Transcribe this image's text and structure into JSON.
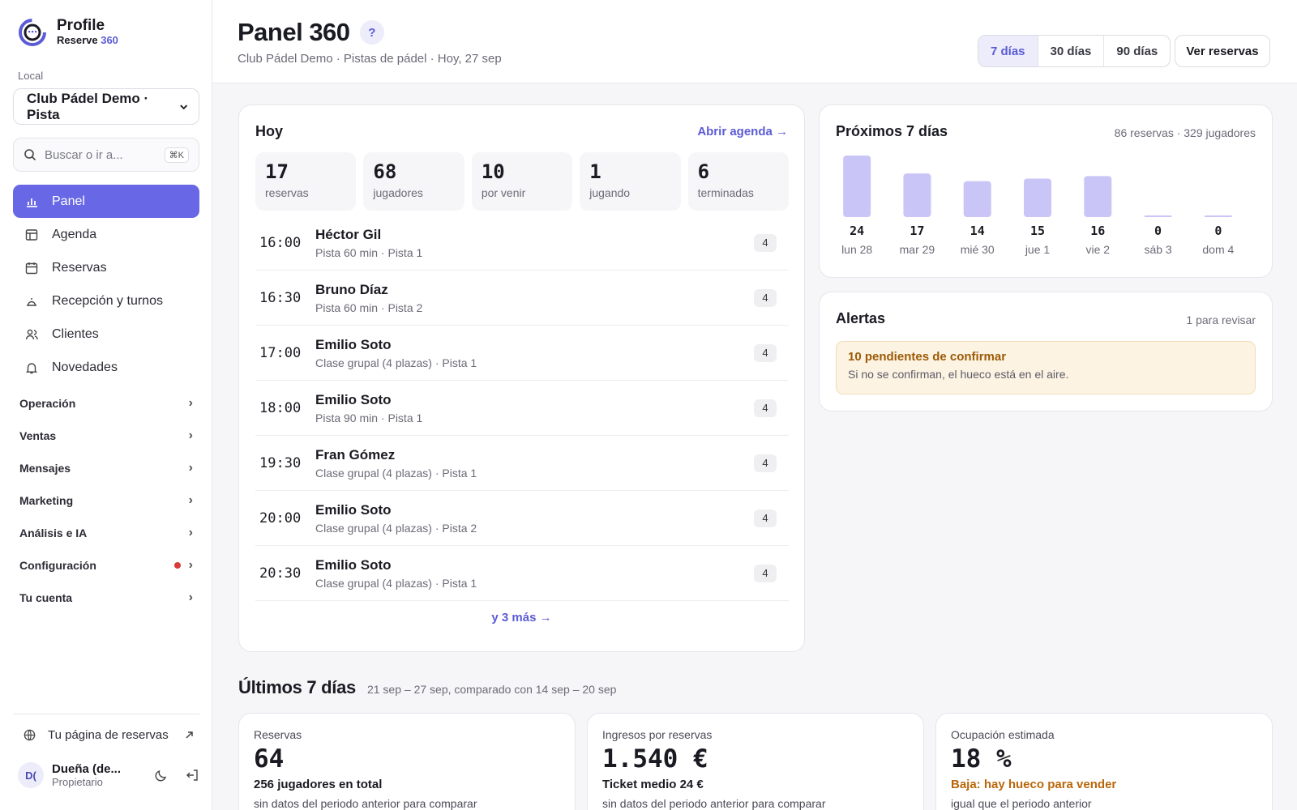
{
  "brand": {
    "name": "Profile",
    "sub_prefix": "Reserve ",
    "sub_accent": "360"
  },
  "sidebar": {
    "local_label": "Local",
    "local_value": "Club Pádel Demo · Pista",
    "search_placeholder": "Buscar o ir a...",
    "search_shortcut": "⌘K",
    "nav": [
      {
        "label": "Panel",
        "icon": "chart-bars-icon",
        "active": true
      },
      {
        "label": "Agenda",
        "icon": "table-icon"
      },
      {
        "label": "Reservas",
        "icon": "calendar-icon"
      },
      {
        "label": "Recepción y turnos",
        "icon": "bell-desk-icon"
      },
      {
        "label": "Clientes",
        "icon": "users-icon"
      },
      {
        "label": "Novedades",
        "icon": "bell-icon"
      }
    ],
    "groups": [
      {
        "label": "Operación"
      },
      {
        "label": "Ventas"
      },
      {
        "label": "Mensajes"
      },
      {
        "label": "Marketing"
      },
      {
        "label": "Análisis e IA"
      },
      {
        "label": "Configuración",
        "alert_dot": true
      },
      {
        "label": "Tu cuenta"
      }
    ],
    "public_link": "Tu página de reservas",
    "user": {
      "initials": "D(",
      "name": "Dueña (de...",
      "role": "Propietario"
    }
  },
  "header": {
    "title": "Panel 360",
    "help": "?",
    "subtitle": "Club Pádel Demo · Pistas de pádel · Hoy, 27 sep",
    "ranges": [
      "7 días",
      "30 días",
      "90 días"
    ],
    "active_range": 0,
    "ver_reservas": "Ver reservas"
  },
  "today": {
    "title": "Hoy",
    "open_agenda": "Abrir agenda →",
    "stats": [
      {
        "value": "17",
        "label": "reservas"
      },
      {
        "value": "68",
        "label": "jugadores"
      },
      {
        "value": "10",
        "label": "por venir"
      },
      {
        "value": "1",
        "label": "jugando"
      },
      {
        "value": "6",
        "label": "terminadas"
      }
    ],
    "bookings": [
      {
        "time": "16:00",
        "name": "Héctor Gil",
        "meta": "Pista 60 min · Pista 1",
        "players": "4"
      },
      {
        "time": "16:30",
        "name": "Bruno Díaz",
        "meta": "Pista 60 min · Pista 2",
        "players": "4"
      },
      {
        "time": "17:00",
        "name": "Emilio Soto",
        "meta": "Clase grupal (4 plazas) · Pista 1",
        "players": "4"
      },
      {
        "time": "18:00",
        "name": "Emilio Soto",
        "meta": "Pista 90 min · Pista 1",
        "players": "4"
      },
      {
        "time": "19:30",
        "name": "Fran Gómez",
        "meta": "Clase grupal (4 plazas) · Pista 1",
        "players": "4"
      },
      {
        "time": "20:00",
        "name": "Emilio Soto",
        "meta": "Clase grupal (4 plazas) · Pista 2",
        "players": "4"
      },
      {
        "time": "20:30",
        "name": "Emilio Soto",
        "meta": "Clase grupal (4 plazas) · Pista 1",
        "players": "4"
      }
    ],
    "more": "y 3 más →"
  },
  "next7": {
    "title": "Próximos 7 días",
    "summary": "86 reservas · 329 jugadores",
    "bar_color": "#c9c6f7"
  },
  "chart_data": {
    "type": "bar",
    "categories": [
      "lun 28",
      "mar 29",
      "mié 30",
      "jue 1",
      "vie 2",
      "sáb 3",
      "dom 4"
    ],
    "values": [
      24,
      17,
      14,
      15,
      16,
      0,
      0
    ]
  },
  "alerts": {
    "title": "Alertas",
    "summary": "1 para revisar",
    "items": [
      {
        "title": "10 pendientes de confirmar",
        "text": "Si no se confirman, el hueco está en el aire."
      }
    ]
  },
  "last7": {
    "title": "Últimos 7 días",
    "range": "21 sep – 27 sep, comparado con 14 sep – 20 sep",
    "kpis": [
      {
        "label": "Reservas",
        "value": "64",
        "sub": "256 jugadores en total",
        "note": "sin datos del periodo anterior para comparar"
      },
      {
        "label": "Ingresos por reservas",
        "value": "1.540 €",
        "sub": "Ticket medio 24 €",
        "note": "sin datos del periodo anterior para comparar"
      },
      {
        "label": "Ocupación estimada",
        "value": "18 %",
        "sub": "Baja: hay hueco para vender",
        "note": "igual que el periodo anterior",
        "sub_status": "warning"
      }
    ]
  },
  "colors": {
    "accent": "#6868e6",
    "warning": "#b9670a",
    "alert_bg": "#fdf3e3"
  }
}
